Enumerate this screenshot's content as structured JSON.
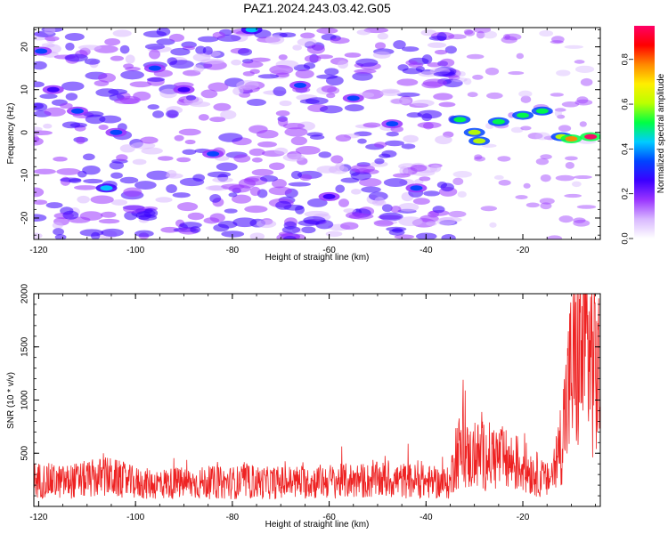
{
  "title": "PAZ1.2024.243.03.42.G05",
  "chart_data": [
    {
      "type": "heatmap",
      "xlabel": "Height of straight line (km)",
      "ylabel": "Frequency (Hz)",
      "xlim": [
        -121,
        -4
      ],
      "ylim": [
        -25,
        24.5
      ],
      "xticks": [
        -120,
        -100,
        -80,
        -60,
        -40,
        -20
      ],
      "yticks": [
        -20,
        -10,
        0,
        10,
        20
      ],
      "grid": false,
      "colorbar": {
        "label": "Normalized spectral amplitude",
        "range": [
          0,
          0.95
        ],
        "ticks": [
          0.0,
          0.2,
          0.4,
          0.6,
          0.8
        ],
        "colors": [
          "#ffffff",
          "#d8b8ff",
          "#9a35ff",
          "#3b00ff",
          "#0044ff",
          "#00ccff",
          "#00ff44",
          "#bbff00",
          "#ffee00",
          "#ff8800",
          "#ff0000",
          "#ff0066"
        ]
      },
      "features": [
        {
          "x": -119.5,
          "y": 19,
          "value": 0.35
        },
        {
          "x": -117,
          "y": 10,
          "value": 0.3
        },
        {
          "x": -112,
          "y": 5,
          "value": 0.32
        },
        {
          "x": -106,
          "y": -13,
          "value": 0.4
        },
        {
          "x": -104,
          "y": 0,
          "value": 0.33
        },
        {
          "x": -96,
          "y": 15,
          "value": 0.34
        },
        {
          "x": -90,
          "y": 10,
          "value": 0.3
        },
        {
          "x": -84,
          "y": -5,
          "value": 0.35
        },
        {
          "x": -76,
          "y": 24,
          "value": 0.4
        },
        {
          "x": -66,
          "y": 11,
          "value": 0.33
        },
        {
          "x": -60,
          "y": -15,
          "value": 0.3
        },
        {
          "x": -55,
          "y": 8,
          "value": 0.32
        },
        {
          "x": -47,
          "y": 2,
          "value": 0.35
        },
        {
          "x": -42,
          "y": -13,
          "value": 0.33
        },
        {
          "x": -33,
          "y": 3,
          "value": 0.55
        },
        {
          "x": -30,
          "y": 0,
          "value": 0.58
        },
        {
          "x": -29,
          "y": -2,
          "value": 0.6
        },
        {
          "x": -25,
          "y": 2.5,
          "value": 0.55
        },
        {
          "x": -20,
          "y": 4,
          "value": 0.56
        },
        {
          "x": -16,
          "y": 5,
          "value": 0.55
        },
        {
          "x": -12,
          "y": -1,
          "value": 0.62
        },
        {
          "x": -10,
          "y": -1.5,
          "value": 0.8
        },
        {
          "x": -6,
          "y": -1,
          "value": 0.93
        }
      ]
    },
    {
      "type": "line",
      "xlabel": "Height of straight line (km)",
      "ylabel": "SNR (10 * v/v)",
      "xlim": [
        -121,
        -4
      ],
      "ylim": [
        0,
        2000
      ],
      "xticks": [
        -120,
        -100,
        -80,
        -60,
        -40,
        -20
      ],
      "yticks": [
        500,
        1000,
        1500,
        2000
      ],
      "grid": false,
      "series": [
        {
          "color": "#ee2222",
          "x": [
            -121,
            -118,
            -115,
            -112,
            -109,
            -106,
            -103,
            -100,
            -97,
            -94,
            -91,
            -88,
            -85,
            -82,
            -79,
            -76,
            -73,
            -70,
            -67,
            -64,
            -61,
            -58,
            -55,
            -52,
            -49,
            -46,
            -43,
            -40,
            -37,
            -35,
            -34,
            -33,
            -31,
            -29,
            -27,
            -25,
            -23,
            -21,
            -19,
            -17,
            -16,
            -15,
            -14,
            -13,
            -12,
            -11,
            -10,
            -9,
            -8,
            -7,
            -6,
            -5,
            -4
          ],
          "y": [
            250,
            240,
            230,
            245,
            260,
            280,
            250,
            220,
            210,
            215,
            220,
            215,
            225,
            220,
            225,
            230,
            220,
            225,
            230,
            225,
            240,
            235,
            245,
            240,
            250,
            245,
            240,
            230,
            220,
            215,
            500,
            520,
            450,
            480,
            470,
            460,
            420,
            400,
            350,
            300,
            260,
            240,
            300,
            420,
            650,
            950,
            1250,
            1350,
            1450,
            1550,
            1450,
            1300,
            1200
          ]
        }
      ]
    }
  ]
}
